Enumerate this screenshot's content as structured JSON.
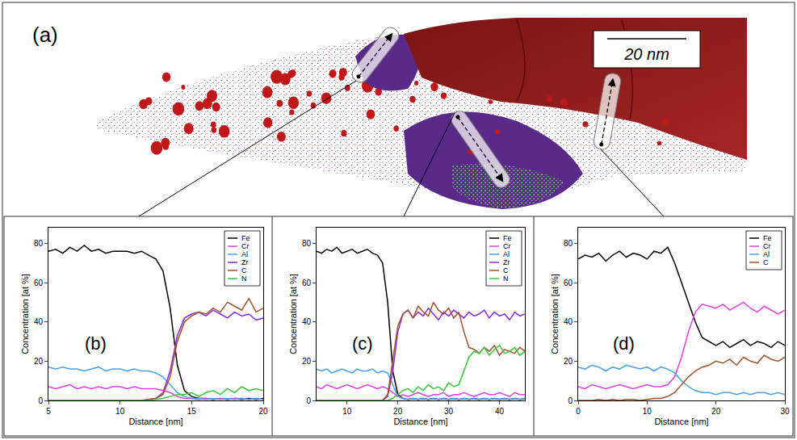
{
  "figure": {
    "label": "(a)",
    "scale_bar": "20 nm"
  },
  "chart_data": [
    {
      "panel_label": "(b)",
      "type": "line",
      "x_label": "Distance [nm]",
      "y_label": "Concentration [at %]",
      "xlim": [
        5,
        20
      ],
      "xticks": [
        5,
        10,
        15,
        20
      ],
      "ylim": [
        0,
        88
      ],
      "yticks": [
        0,
        20,
        40,
        60,
        80
      ],
      "grid": false,
      "legend": "upper right",
      "x": [
        5,
        5.5,
        6,
        6.5,
        7,
        7.5,
        8,
        8.5,
        9,
        9.5,
        10,
        10.5,
        11,
        11.5,
        12,
        12.5,
        13,
        13.5,
        14,
        14.5,
        15,
        15.5,
        16,
        16.5,
        17,
        17.5,
        18,
        18.5,
        19,
        19.5,
        20
      ],
      "series": [
        {
          "name": "Fe",
          "color": "#000000",
          "values": [
            76,
            77,
            75,
            78,
            76,
            79,
            76,
            77,
            75,
            76,
            76,
            76,
            75,
            76,
            74,
            72,
            66,
            47,
            18,
            5,
            2,
            1,
            1,
            0.5,
            1,
            0.5,
            1,
            0.5,
            1,
            0.5,
            1
          ]
        },
        {
          "name": "Cr",
          "color": "#e040e0",
          "values": [
            7,
            6,
            7,
            8,
            6,
            7,
            6,
            7,
            6,
            7,
            7,
            6,
            7,
            6,
            6,
            6,
            5,
            4,
            2,
            1,
            1,
            0.5,
            1,
            0.5,
            1,
            0.5,
            1,
            1,
            0.5,
            1,
            0.5
          ]
        },
        {
          "name": "Al",
          "color": "#4a9fe8",
          "values": [
            17,
            16,
            17,
            16,
            16,
            15,
            16,
            17,
            15,
            16,
            16,
            15,
            16,
            15,
            15,
            14,
            12,
            8,
            4,
            2,
            1,
            1,
            0.5,
            1,
            0.5,
            1,
            0.5,
            1,
            0.5,
            1,
            0.5
          ]
        },
        {
          "name": "Zr",
          "color": "#8a2be2",
          "values": [
            0,
            0,
            0,
            0,
            0,
            0,
            0,
            0,
            0,
            0,
            0,
            0,
            0,
            0,
            0.5,
            1,
            4,
            15,
            33,
            42,
            44,
            45,
            43,
            46,
            44,
            42,
            45,
            43,
            44,
            41,
            42
          ]
        },
        {
          "name": "C",
          "color": "#a0522d",
          "values": [
            0,
            0,
            0,
            0,
            0,
            0,
            0,
            0,
            0,
            0,
            0,
            0,
            0,
            0,
            0.5,
            1,
            3,
            12,
            30,
            40,
            43,
            45,
            44,
            47,
            45,
            50,
            48,
            46,
            52,
            45,
            47
          ]
        },
        {
          "name": "N",
          "color": "#3cc43c",
          "values": [
            0,
            0,
            0,
            0,
            0,
            0,
            0,
            0,
            0,
            0,
            0,
            0,
            0,
            0,
            0,
            0.5,
            1,
            2,
            3,
            3,
            4,
            2,
            4,
            5,
            3,
            6,
            4,
            7,
            5,
            6,
            5
          ]
        }
      ]
    },
    {
      "panel_label": "(c)",
      "type": "line",
      "x_label": "Distance [nm]",
      "y_label": "Concentration [at %]",
      "xlim": [
        4,
        45
      ],
      "xticks": [
        10,
        20,
        30,
        40
      ],
      "ylim": [
        0,
        88
      ],
      "yticks": [
        0,
        20,
        40,
        60,
        80
      ],
      "grid": false,
      "legend": "upper right",
      "x": [
        4,
        5,
        6,
        7,
        8,
        9,
        10,
        11,
        12,
        13,
        14,
        15,
        16,
        17,
        18,
        19,
        20,
        21,
        22,
        23,
        24,
        25,
        26,
        27,
        28,
        29,
        30,
        31,
        32,
        33,
        34,
        35,
        36,
        37,
        38,
        39,
        40,
        41,
        42,
        43,
        44,
        45
      ],
      "series": [
        {
          "name": "Fe",
          "color": "#000000",
          "values": [
            76,
            75,
            77,
            76,
            78,
            75,
            76,
            77,
            75,
            76,
            77,
            75,
            74,
            70,
            50,
            15,
            3,
            1,
            0.5,
            1,
            0.5,
            1,
            0.5,
            1,
            0.5,
            1,
            0.5,
            1,
            0.5,
            1,
            0.5,
            1,
            0.5,
            1,
            0.5,
            1,
            0.5,
            1,
            0.5,
            1,
            0.5,
            1
          ]
        },
        {
          "name": "Cr",
          "color": "#e040e0",
          "values": [
            7,
            6,
            8,
            7,
            6,
            7,
            8,
            7,
            6,
            7,
            8,
            7,
            6,
            7,
            6,
            4,
            2,
            3,
            2,
            3,
            4,
            3,
            2,
            3,
            3,
            4,
            2,
            3,
            3,
            4,
            3,
            2,
            3,
            4,
            3,
            3,
            4,
            3,
            2,
            4,
            3,
            3
          ]
        },
        {
          "name": "Al",
          "color": "#4a9fe8",
          "values": [
            16,
            15,
            16,
            14,
            15,
            16,
            15,
            14,
            16,
            15,
            15,
            16,
            14,
            15,
            14,
            8,
            2,
            1,
            0.5,
            1,
            0.5,
            1,
            0.5,
            1,
            0.5,
            1,
            0.5,
            1,
            0.5,
            1,
            0.5,
            1,
            0.5,
            1,
            0.5,
            1,
            0.5,
            1,
            0.5,
            1,
            0.5,
            1
          ]
        },
        {
          "name": "Zr",
          "color": "#8a2be2",
          "values": [
            0,
            0,
            0,
            0,
            0,
            0,
            0,
            0,
            0,
            0,
            0,
            0,
            0,
            0,
            2,
            15,
            35,
            44,
            46,
            42,
            45,
            43,
            47,
            44,
            41,
            45,
            43,
            46,
            44,
            42,
            45,
            43,
            44,
            46,
            42,
            45,
            43,
            44,
            41,
            45,
            43,
            44
          ]
        },
        {
          "name": "C",
          "color": "#a0522d",
          "values": [
            0,
            0,
            0,
            0,
            0,
            0,
            0,
            0,
            0,
            0,
            0,
            0,
            0,
            0,
            3,
            20,
            38,
            44,
            46,
            42,
            48,
            45,
            43,
            50,
            46,
            44,
            47,
            42,
            45,
            35,
            27,
            26,
            24,
            27,
            25,
            28,
            23,
            26,
            25,
            24,
            27,
            25
          ]
        },
        {
          "name": "N",
          "color": "#3cc43c",
          "values": [
            0,
            0,
            0,
            0,
            0,
            0,
            0,
            0,
            0,
            0,
            0,
            0,
            0,
            0,
            0,
            1,
            3,
            5,
            6,
            4,
            7,
            5,
            8,
            6,
            7,
            5,
            9,
            7,
            8,
            15,
            22,
            25,
            24,
            27,
            23,
            26,
            28,
            24,
            25,
            27,
            23,
            25
          ]
        }
      ]
    },
    {
      "panel_label": "(d)",
      "type": "line",
      "x_label": "Distance [nm]",
      "y_label": "Concentration [at %]",
      "xlim": [
        0,
        30
      ],
      "xticks": [
        0,
        10,
        20,
        30
      ],
      "ylim": [
        0,
        88
      ],
      "yticks": [
        0,
        20,
        40,
        60,
        80
      ],
      "grid": false,
      "legend": "upper right",
      "x": [
        0,
        1,
        2,
        3,
        4,
        5,
        6,
        7,
        8,
        9,
        10,
        11,
        12,
        13,
        14,
        15,
        16,
        17,
        18,
        19,
        20,
        21,
        22,
        23,
        24,
        25,
        26,
        27,
        28,
        29,
        30
      ],
      "series": [
        {
          "name": "Fe",
          "color": "#000000",
          "values": [
            72,
            74,
            73,
            75,
            71,
            74,
            76,
            73,
            75,
            74,
            72,
            76,
            75,
            78,
            70,
            60,
            50,
            40,
            32,
            30,
            28,
            30,
            27,
            29,
            31,
            28,
            30,
            29,
            27,
            30,
            28
          ]
        },
        {
          "name": "Cr",
          "color": "#e040e0",
          "values": [
            7,
            6,
            8,
            7,
            6,
            7,
            8,
            7,
            6,
            7,
            8,
            7,
            7,
            8,
            12,
            22,
            35,
            45,
            49,
            48,
            47,
            49,
            46,
            48,
            50,
            47,
            45,
            48,
            46,
            44,
            46
          ]
        },
        {
          "name": "Al",
          "color": "#4a9fe8",
          "values": [
            17,
            16,
            18,
            17,
            15,
            17,
            16,
            18,
            17,
            16,
            17,
            15,
            17,
            16,
            14,
            10,
            7,
            5,
            4,
            4,
            3,
            4,
            4,
            3,
            4,
            3,
            4,
            4,
            3,
            4,
            3
          ]
        },
        {
          "name": "C",
          "color": "#a0522d",
          "values": [
            0,
            0,
            0,
            0.5,
            0,
            0.5,
            0,
            0.5,
            0.5,
            0,
            0.5,
            1,
            1,
            2,
            4,
            8,
            12,
            15,
            17,
            18,
            20,
            19,
            21,
            18,
            22,
            20,
            19,
            23,
            21,
            20,
            22
          ]
        }
      ]
    }
  ]
}
